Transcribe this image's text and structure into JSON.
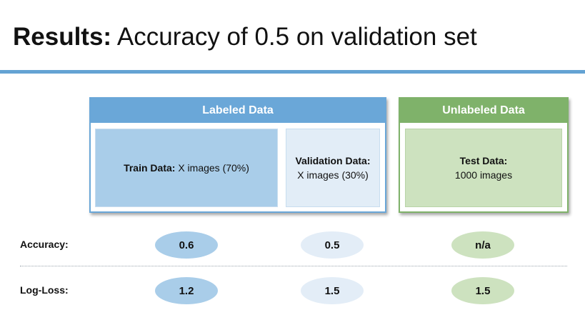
{
  "title": {
    "bold": "Results:",
    "rest": " Accuracy of 0.5 on validation set"
  },
  "labeled_panel": {
    "header": "Labeled Data",
    "train": {
      "label": "Train Data:",
      "text": " X images (70%)"
    },
    "validation": {
      "label": "Validation Data:",
      "text": "X images (30%)"
    }
  },
  "unlabeled_panel": {
    "header": "Unlabeled Data",
    "test": {
      "label": "Test Data:",
      "text": "1000 images"
    }
  },
  "metrics": {
    "accuracy": {
      "label": "Accuracy:",
      "train": "0.6",
      "validation": "0.5",
      "test": "n/a"
    },
    "logloss": {
      "label": "Log-Loss:",
      "train": "1.2",
      "validation": "1.5",
      "test": "1.5"
    }
  },
  "colors": {
    "accent_blue": "#6aa7d8",
    "accent_green": "#7fb26a",
    "train_fill": "#a9cde9",
    "validation_fill": "#e2edf7",
    "test_fill": "#cde2bf"
  }
}
